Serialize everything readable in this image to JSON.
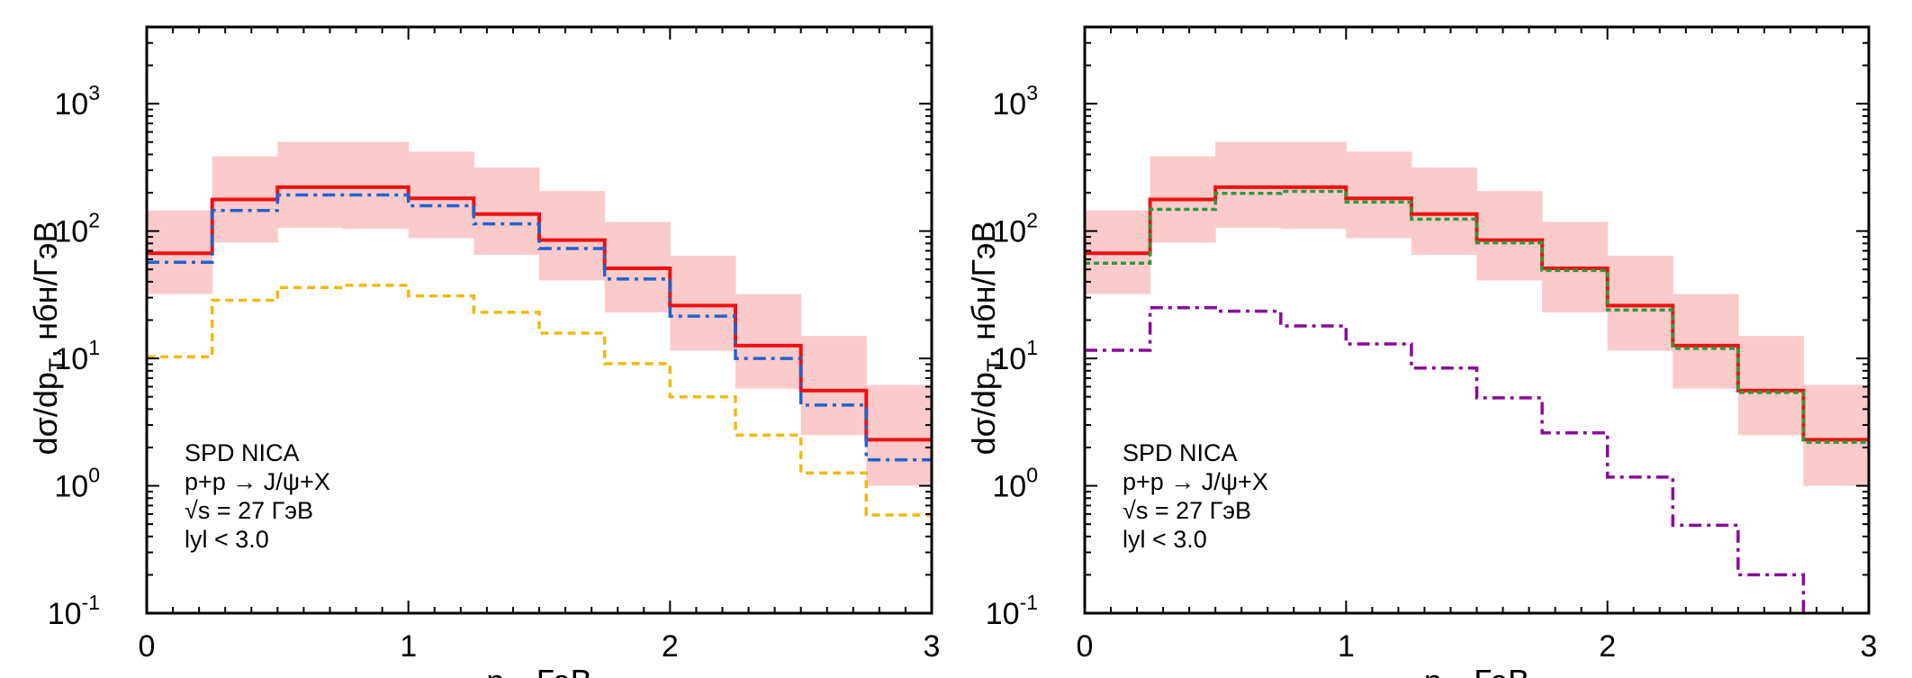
{
  "chart_data": [
    {
      "type": "line",
      "subtype": "step-histogram-with-band",
      "title": "",
      "xlabel": "p_T, ГэВ",
      "xlabel_main": "p",
      "xlabel_sub": "T",
      "xlabel_rest": ", ГэВ",
      "ylabel_main": "dσ/dp",
      "ylabel_sub": "T",
      "ylabel_rest": ", нбн/ГэВ",
      "xlim": [
        0,
        3
      ],
      "ylim": [
        0.1,
        4000
      ],
      "yscale": "log",
      "x_ticks": [
        "0",
        "1",
        "2",
        "3"
      ],
      "y_ticks": [
        {
          "base": "10",
          "exp": "-1",
          "value": 0.1
        },
        {
          "base": "10",
          "exp": "0",
          "value": 1
        },
        {
          "base": "10",
          "exp": "1",
          "value": 10
        },
        {
          "base": "10",
          "exp": "2",
          "value": 100
        },
        {
          "base": "10",
          "exp": "3",
          "value": 1000
        }
      ],
      "bin_edges": [
        0,
        0.25,
        0.5,
        0.75,
        1.0,
        1.25,
        1.5,
        1.75,
        2.0,
        2.25,
        2.5,
        2.75,
        3.0
      ],
      "band": {
        "name": "uncertainty band",
        "color": "#fbcaca",
        "upper": [
          145,
          386,
          502,
          502,
          420,
          315,
          206,
          118,
          64,
          32,
          15,
          6.2
        ],
        "lower": [
          32,
          81,
          106,
          104,
          88,
          65,
          41,
          23,
          11.5,
          5.8,
          2.5,
          1.0
        ]
      },
      "series": [
        {
          "name": "total",
          "color": "#ee1111",
          "style": "solid",
          "values": [
            67,
            177,
            221,
            221,
            181,
            136,
            85,
            51,
            26,
            12.6,
            5.6,
            2.3
          ]
        },
        {
          "name": "component-blue",
          "color": "#1f63d1",
          "style": "dashdot",
          "values": [
            57,
            145,
            192,
            192,
            158,
            114,
            73,
            42,
            21.5,
            10,
            4.3,
            1.6
          ]
        },
        {
          "name": "component-yellow",
          "color": "#f0b90f",
          "style": "dashed",
          "values": [
            10.3,
            28.6,
            36,
            37.5,
            31,
            23,
            15.8,
            9.1,
            5.0,
            2.5,
            1.26,
            0.59
          ]
        }
      ],
      "annotation": [
        "SPD NICA",
        "p+p → J/ψ+X",
        "√s = 27 ГэВ",
        "lyl < 3.0"
      ],
      "legend_position": "bottom-left",
      "grid": false
    },
    {
      "type": "line",
      "subtype": "step-histogram-with-band",
      "title": "",
      "xlabel": "p_T, ГэВ",
      "xlabel_main": "p",
      "xlabel_sub": "T",
      "xlabel_rest": ", ГэВ",
      "ylabel_main": "dσ/dp",
      "ylabel_sub": "T",
      "ylabel_rest": ", нбн/ГэВ",
      "xlim": [
        0,
        3
      ],
      "ylim": [
        0.1,
        4000
      ],
      "yscale": "log",
      "x_ticks": [
        "0",
        "1",
        "2",
        "3"
      ],
      "y_ticks": [
        {
          "base": "10",
          "exp": "-1",
          "value": 0.1
        },
        {
          "base": "10",
          "exp": "0",
          "value": 1
        },
        {
          "base": "10",
          "exp": "1",
          "value": 10
        },
        {
          "base": "10",
          "exp": "2",
          "value": 100
        },
        {
          "base": "10",
          "exp": "3",
          "value": 1000
        }
      ],
      "bin_edges": [
        0,
        0.25,
        0.5,
        0.75,
        1.0,
        1.25,
        1.5,
        1.75,
        2.0,
        2.25,
        2.5,
        2.75,
        3.0
      ],
      "band": {
        "name": "uncertainty band",
        "color": "#fbcaca",
        "upper": [
          145,
          386,
          502,
          502,
          420,
          315,
          206,
          118,
          64,
          32,
          15,
          6.2
        ],
        "lower": [
          32,
          81,
          106,
          104,
          88,
          65,
          41,
          23,
          11.5,
          5.8,
          2.5,
          1.0
        ]
      },
      "series": [
        {
          "name": "total",
          "color": "#ee1111",
          "style": "solid",
          "values": [
            67,
            177,
            221,
            221,
            181,
            136,
            85,
            51,
            26,
            12.6,
            5.6,
            2.3
          ]
        },
        {
          "name": "component-green",
          "color": "#2a9a3e",
          "style": "dotted",
          "values": [
            56,
            148,
            198,
            205,
            169,
            124,
            81,
            49,
            24,
            12,
            5.4,
            2.2
          ]
        },
        {
          "name": "component-purple",
          "color": "#8a0a9a",
          "style": "dashdot",
          "values": [
            11.6,
            25,
            23.5,
            18,
            13,
            8.4,
            4.9,
            2.6,
            1.17,
            0.49,
            0.2,
            0.05
          ]
        }
      ],
      "annotation": [
        "SPD NICA",
        "p+p → J/ψ+X",
        "√s = 27 ГэВ",
        "lyl < 3.0"
      ],
      "legend_position": "bottom-left",
      "grid": false
    }
  ]
}
